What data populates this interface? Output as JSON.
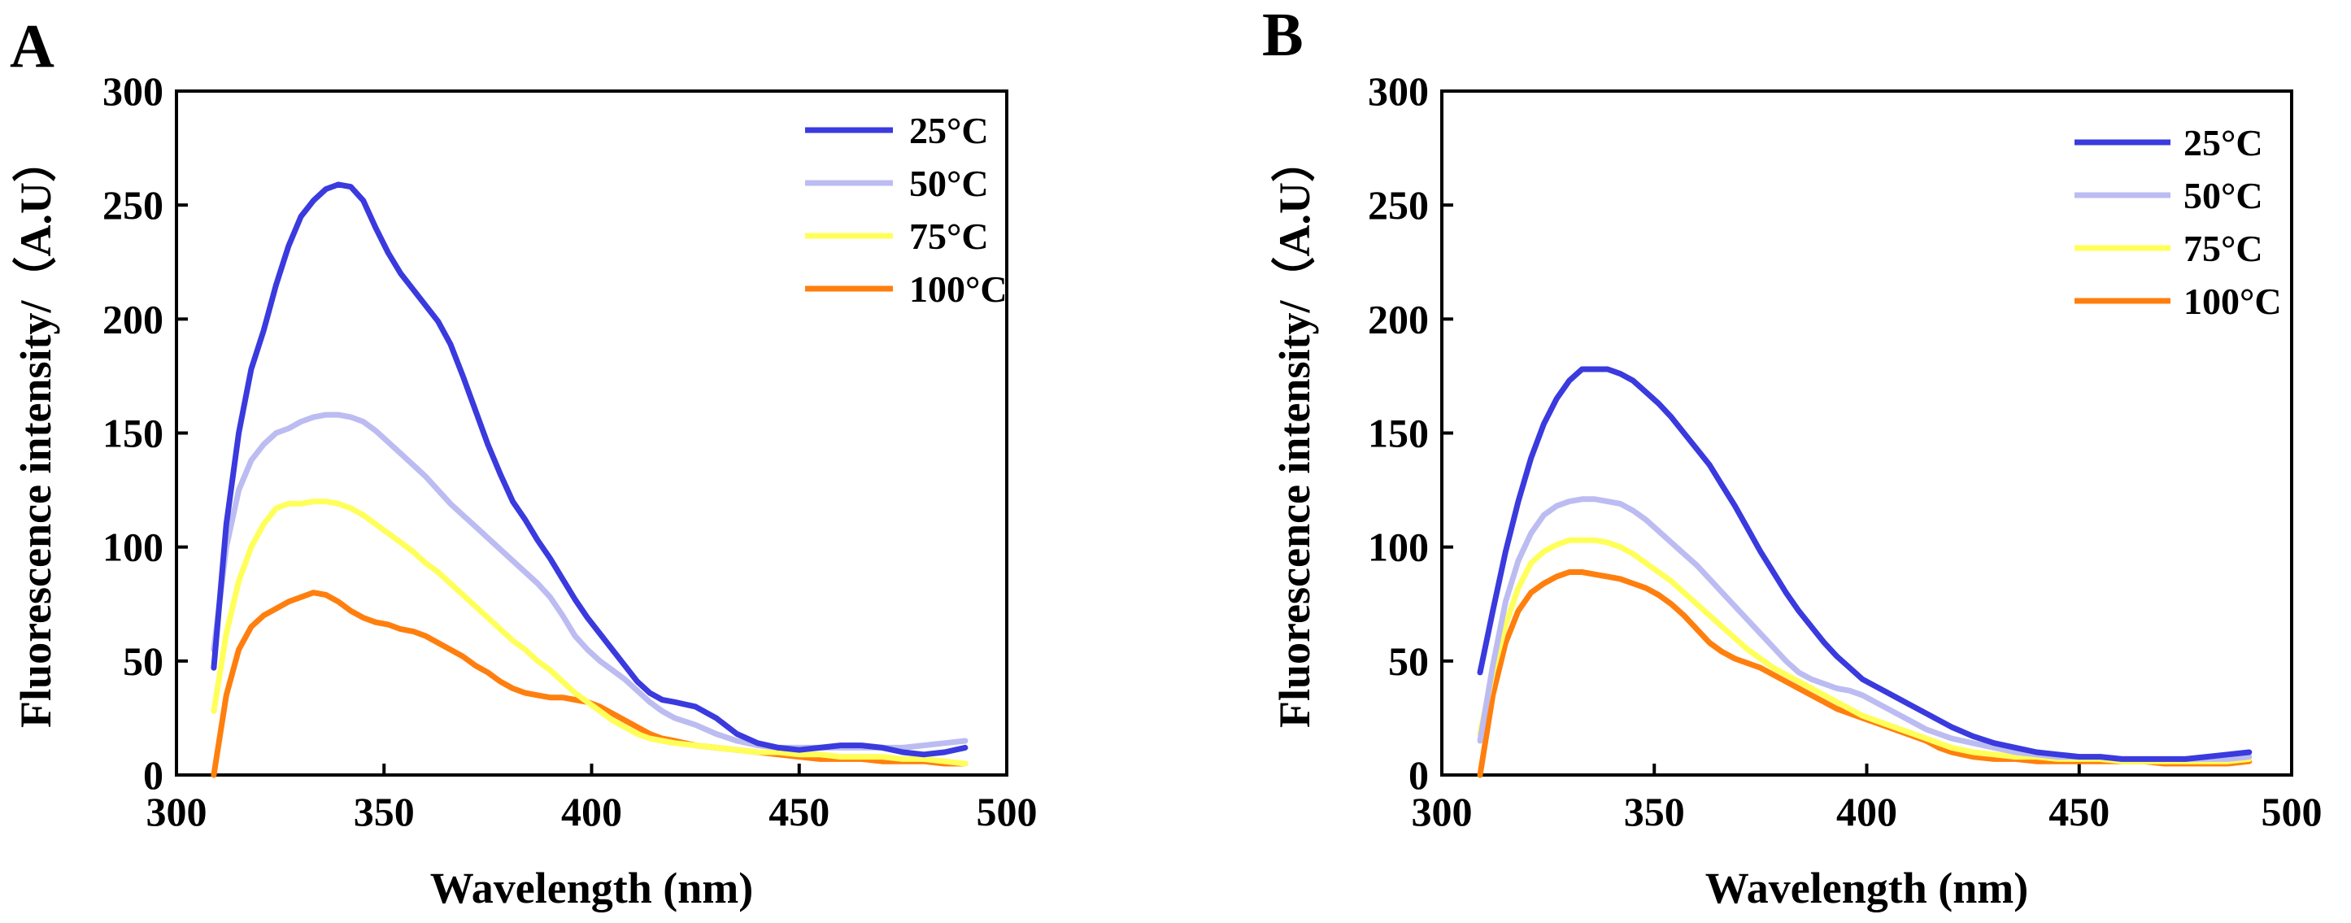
{
  "chart_data": [
    {
      "type": "line",
      "panel_label": "A",
      "xlabel": "Wavelength (nm)",
      "ylabel": "Fluorescence intensity/（A.U）",
      "xlim": [
        300,
        500
      ],
      "ylim": [
        0,
        300
      ],
      "xticks": [
        300,
        350,
        400,
        450,
        500
      ],
      "yticks": [
        0,
        50,
        100,
        150,
        200,
        250,
        300
      ],
      "legend_position": "top-right",
      "grid": false,
      "x": [
        309,
        312,
        315,
        318,
        321,
        324,
        327,
        330,
        333,
        336,
        339,
        342,
        345,
        348,
        351,
        354,
        357,
        360,
        363,
        366,
        369,
        372,
        375,
        378,
        381,
        384,
        387,
        390,
        393,
        396,
        399,
        402,
        405,
        408,
        411,
        414,
        417,
        420,
        425,
        430,
        435,
        440,
        445,
        450,
        455,
        460,
        465,
        470,
        475,
        480,
        485,
        490
      ],
      "series": [
        {
          "name": "25°C",
          "color": "#3a3ade",
          "values": [
            47,
            110,
            150,
            178,
            195,
            215,
            232,
            245,
            252,
            257,
            259,
            258,
            252,
            240,
            229,
            220,
            213,
            206,
            199,
            189,
            175,
            160,
            145,
            132,
            120,
            112,
            103,
            95,
            86,
            77,
            69,
            62,
            55,
            48,
            41,
            36,
            33,
            32,
            30,
            25,
            18,
            14,
            12,
            11,
            12,
            13,
            13,
            12,
            10,
            9,
            10,
            12
          ]
        },
        {
          "name": "50°C",
          "color": "#bcbcf2",
          "values": [
            55,
            100,
            125,
            138,
            145,
            150,
            152,
            155,
            157,
            158,
            158,
            157,
            155,
            151,
            146,
            141,
            136,
            131,
            125,
            119,
            114,
            109,
            104,
            99,
            94,
            89,
            84,
            78,
            70,
            61,
            55,
            50,
            46,
            42,
            37,
            32,
            28,
            25,
            22,
            18,
            15,
            13,
            12,
            12,
            12,
            12,
            12,
            12,
            12,
            13,
            14,
            15
          ]
        },
        {
          "name": "75°C",
          "color": "#ffff5a",
          "values": [
            28,
            62,
            85,
            100,
            110,
            117,
            119,
            119,
            120,
            120,
            119,
            117,
            114,
            110,
            106,
            102,
            98,
            93,
            89,
            84,
            79,
            74,
            69,
            64,
            59,
            55,
            50,
            46,
            41,
            36,
            32,
            28,
            24,
            21,
            18,
            16,
            15,
            14,
            13,
            12,
            11,
            10,
            10,
            9,
            9,
            8,
            8,
            8,
            7,
            7,
            6,
            5
          ]
        },
        {
          "name": "100°C",
          "color": "#ff7f0e",
          "values": [
            0,
            35,
            55,
            65,
            70,
            73,
            76,
            78,
            80,
            79,
            76,
            72,
            69,
            67,
            66,
            64,
            63,
            61,
            58,
            55,
            52,
            48,
            45,
            41,
            38,
            36,
            35,
            34,
            34,
            33,
            32,
            30,
            27,
            24,
            21,
            18,
            16,
            15,
            13,
            12,
            11,
            10,
            9,
            8,
            7,
            7,
            7,
            6,
            6,
            6,
            5,
            5
          ]
        }
      ]
    },
    {
      "type": "line",
      "panel_label": "B",
      "xlabel": "Wavelength (nm)",
      "ylabel": "Fluorescence intensity/（A.U）",
      "xlim": [
        300,
        500
      ],
      "ylim": [
        0,
        300
      ],
      "xticks": [
        300,
        350,
        400,
        450,
        500
      ],
      "yticks": [
        0,
        50,
        100,
        150,
        200,
        250,
        300
      ],
      "legend_position": "top-right",
      "grid": false,
      "x": [
        309,
        312,
        315,
        318,
        321,
        324,
        327,
        330,
        333,
        336,
        339,
        342,
        345,
        348,
        351,
        354,
        357,
        360,
        363,
        366,
        369,
        372,
        375,
        378,
        381,
        384,
        387,
        390,
        393,
        396,
        399,
        402,
        405,
        408,
        411,
        414,
        417,
        420,
        425,
        430,
        435,
        440,
        445,
        450,
        455,
        460,
        465,
        470,
        475,
        480,
        485,
        490
      ],
      "series": [
        {
          "name": "25°C",
          "color": "#3a3ade",
          "values": [
            45,
            72,
            98,
            120,
            139,
            154,
            165,
            173,
            178,
            178,
            178,
            176,
            173,
            168,
            163,
            157,
            150,
            143,
            136,
            127,
            118,
            108,
            98,
            89,
            80,
            72,
            65,
            58,
            52,
            47,
            42,
            39,
            36,
            33,
            30,
            27,
            24,
            21,
            17,
            14,
            12,
            10,
            9,
            8,
            8,
            7,
            7,
            7,
            7,
            8,
            9,
            10
          ]
        },
        {
          "name": "50°C",
          "color": "#bcbcf2",
          "values": [
            15,
            48,
            76,
            94,
            106,
            114,
            118,
            120,
            121,
            121,
            120,
            119,
            116,
            112,
            107,
            102,
            97,
            92,
            86,
            80,
            74,
            68,
            62,
            56,
            50,
            45,
            42,
            40,
            38,
            37,
            35,
            32,
            29,
            26,
            23,
            20,
            18,
            16,
            14,
            12,
            10,
            9,
            8,
            8,
            8,
            7,
            7,
            7,
            7,
            7,
            7,
            8
          ]
        },
        {
          "name": "75°C",
          "color": "#ffff5a",
          "values": [
            18,
            45,
            66,
            82,
            93,
            98,
            101,
            103,
            103,
            103,
            102,
            100,
            97,
            93,
            89,
            85,
            80,
            75,
            70,
            65,
            60,
            55,
            51,
            47,
            44,
            41,
            38,
            35,
            32,
            29,
            26,
            24,
            22,
            20,
            18,
            16,
            14,
            12,
            10,
            9,
            8,
            8,
            7,
            7,
            7,
            6,
            6,
            6,
            6,
            6,
            6,
            7
          ]
        },
        {
          "name": "100°C",
          "color": "#ff7f0e",
          "values": [
            0,
            35,
            58,
            72,
            80,
            84,
            87,
            89,
            89,
            88,
            87,
            86,
            84,
            82,
            79,
            75,
            70,
            64,
            58,
            54,
            51,
            49,
            47,
            44,
            41,
            38,
            35,
            32,
            29,
            27,
            25,
            23,
            21,
            19,
            17,
            15,
            12,
            10,
            8,
            7,
            7,
            6,
            6,
            6,
            6,
            6,
            6,
            5,
            5,
            5,
            5,
            6
          ]
        }
      ]
    }
  ]
}
